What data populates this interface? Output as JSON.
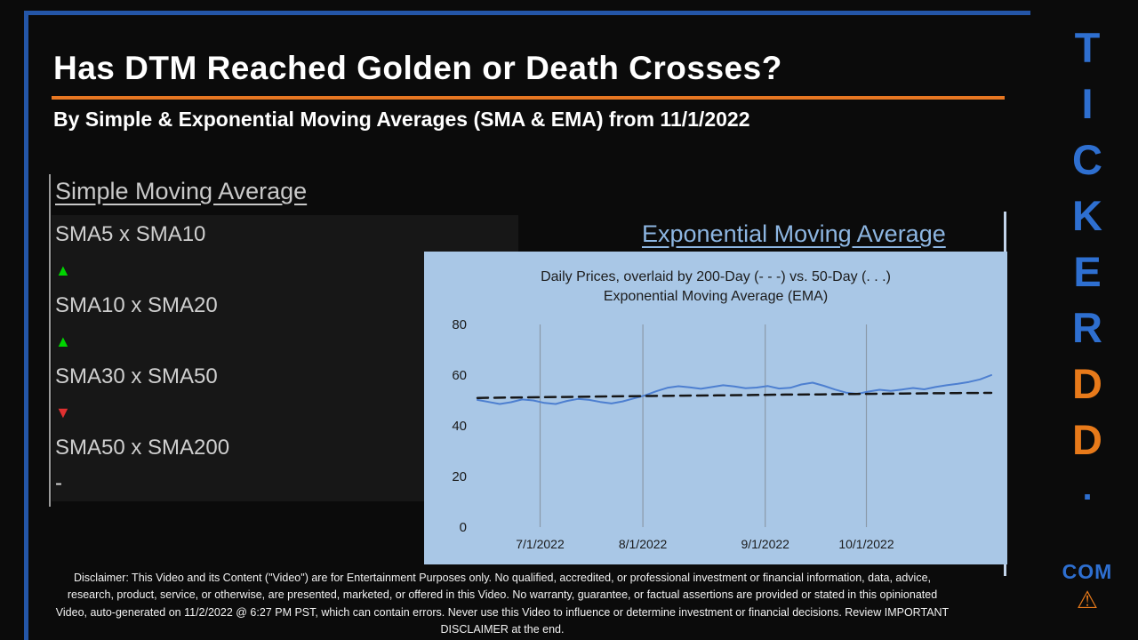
{
  "accent_colors": {
    "border_blue": "#2456a8",
    "underline_orange": "#e87722",
    "up_green": "#00d400",
    "down_red": "#e03030",
    "brand_blue": "#2e6fd0",
    "brand_orange": "#e87a1a"
  },
  "header": {
    "title": "Has DTM Reached Golden or Death Crosses?",
    "subtitle": "By Simple & Exponential Moving Averages (SMA & EMA) from 11/1/2022"
  },
  "sma_panel": {
    "heading": "Simple Moving Average",
    "items": [
      {
        "label": "SMA5 x SMA10",
        "glyph": "▲",
        "style": "color:#00d400"
      },
      {
        "label": "SMA10 x SMA20",
        "glyph": "▲",
        "style": "color:#00d400"
      },
      {
        "label": "SMA30 x SMA50",
        "glyph": "▼",
        "style": "color:#e03030"
      },
      {
        "label": "SMA50 x SMA200",
        "glyph": "-",
        "style": "color:#dcdcdc;font-size:24px"
      }
    ]
  },
  "ema_panel": {
    "heading": "Exponential Moving Average"
  },
  "chart_data": {
    "type": "line",
    "title_line1": "Daily Prices, overlaid by 200-Day (- - -) vs. 50-Day (. . .)",
    "title_line2": "Exponential Moving Average (EMA)",
    "ylim": [
      0,
      80
    ],
    "y_ticks": [
      0,
      20,
      40,
      60,
      80
    ],
    "grid": "vertical-only",
    "legend_position": "none",
    "background": "#a9c7e6",
    "x_gridlines": [
      {
        "label": "7/1/2022",
        "pos": 0.122
      },
      {
        "label": "8/1/2022",
        "pos": 0.322
      },
      {
        "label": "9/1/2022",
        "pos": 0.56
      },
      {
        "label": "10/1/2022",
        "pos": 0.757
      }
    ],
    "series": [
      {
        "name": "Daily Prices",
        "color": "#4d7fd0",
        "width": 2,
        "dashed": false,
        "values": [
          50.2,
          49.4,
          48.6,
          49.3,
          50.4,
          50.0,
          49.0,
          48.6,
          49.8,
          50.6,
          50.2,
          49.4,
          48.8,
          49.6,
          50.8,
          52.0,
          53.6,
          55.0,
          55.6,
          55.2,
          54.6,
          55.3,
          56.0,
          55.5,
          54.8,
          55.1,
          55.7,
          54.7,
          55.0,
          56.3,
          57.0,
          55.8,
          54.3,
          53.1,
          52.6,
          53.5,
          54.2,
          53.8,
          54.3,
          54.9,
          54.4,
          55.3,
          56.0,
          56.6,
          57.3,
          58.3,
          60.0
        ]
      },
      {
        "name": "200-Day EMA",
        "color": "#161616",
        "width": 2.5,
        "dashed": true,
        "values": [
          51.0,
          51.15,
          51.3,
          51.45,
          51.6,
          51.75,
          51.9,
          52.0,
          52.15,
          52.3,
          52.4,
          52.55,
          52.65,
          52.8,
          52.9,
          53.0
        ]
      }
    ]
  },
  "watermark": {
    "letters": [
      {
        "ch": "T",
        "style": "color:#2e6fd0"
      },
      {
        "ch": "I",
        "style": "color:#2e6fd0"
      },
      {
        "ch": "C",
        "style": "color:#2e6fd0"
      },
      {
        "ch": "K",
        "style": "color:#2e6fd0"
      },
      {
        "ch": "E",
        "style": "color:#2e6fd0"
      },
      {
        "ch": "R",
        "style": "color:#2e6fd0"
      },
      {
        "ch": "D",
        "style": "color:#e87a1a"
      },
      {
        "ch": "D",
        "style": "color:#e87a1a"
      }
    ],
    "dot": ".",
    "com": "COM",
    "warning_icon": "⚠"
  },
  "disclaimer": "Disclaimer: This Video and its Content (\"Video\") are for Entertainment Purposes only. No qualified, accredited, or professional investment or financial information, data, advice, research, product, service, or otherwise, are presented, marketed, or offered in this Video. No warranty, guarantee, or factual assertions are provided or stated in this opinionated Video, auto-generated on 11/2/2022 @ 6:27 PM PST, which can contain errors. Never use this Video to influence or determine investment or financial decisions. Review IMPORTANT DISCLAIMER at the end."
}
